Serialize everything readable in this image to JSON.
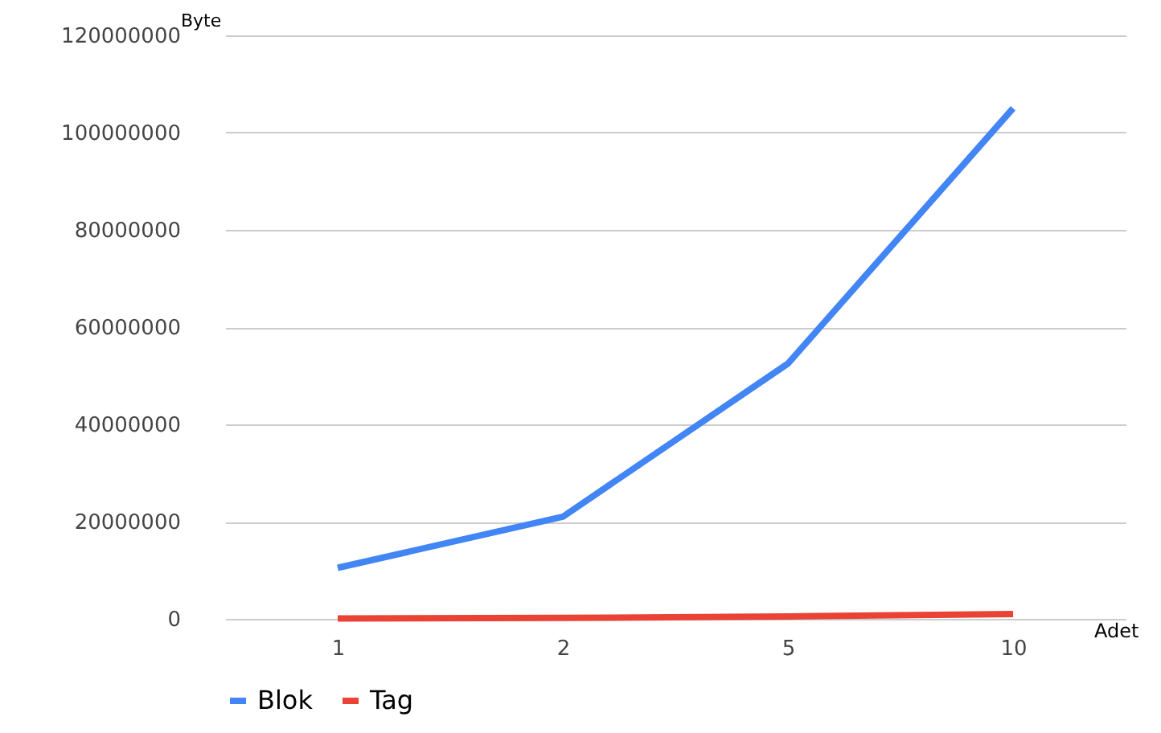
{
  "chart_data": {
    "type": "line",
    "xlabel": "Adet",
    "ylabel": "Byte",
    "categories": [
      "1",
      "2",
      "5",
      "10"
    ],
    "series": [
      {
        "name": "Blok",
        "color": "#4285f4",
        "values": [
          10500000,
          21000000,
          52500000,
          105000000
        ]
      },
      {
        "name": "Tag",
        "color": "#ea4335",
        "values": [
          100000,
          200000,
          500000,
          1000000
        ]
      }
    ],
    "ylim": [
      0,
      120000000
    ],
    "yticks": [
      0,
      20000000,
      40000000,
      60000000,
      80000000,
      100000000,
      120000000
    ],
    "grid": "y",
    "legend": "bottom",
    "marker": "none",
    "line_style": "solid"
  }
}
